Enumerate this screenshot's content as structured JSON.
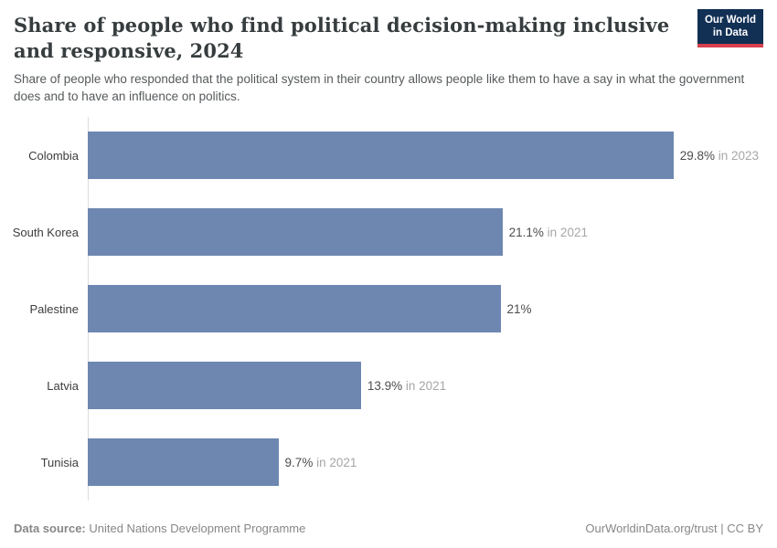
{
  "header": {
    "title": "Share of people who find political decision-making inclusive and responsive, 2024",
    "subtitle": "Share of people who responded that the political system in their country allows people like them to have a say in what the government does and to have an influence on politics.",
    "logo": {
      "line1": "Our World",
      "line2": "in Data"
    }
  },
  "chart_data": {
    "type": "bar",
    "orientation": "horizontal",
    "title": "Share of people who find political decision-making inclusive and responsive, 2024",
    "categories": [
      "Colombia",
      "South Korea",
      "Palestine",
      "Latvia",
      "Tunisia"
    ],
    "values": [
      29.8,
      21.1,
      21,
      13.9,
      9.7
    ],
    "value_labels": [
      "29.8%",
      "21.1%",
      "21%",
      "13.9%",
      "9.7%"
    ],
    "year_labels": [
      "in 2023",
      "in 2021",
      "",
      "in 2021",
      "in 2021"
    ],
    "unit": "%",
    "xlim": [
      0,
      30
    ],
    "grid": false,
    "legend": "none",
    "bar_color": "#6e87b1",
    "axis_color": "#dcdcdc"
  },
  "footer": {
    "datasource_label": "Data source:",
    "datasource_value": " United Nations Development Programme",
    "attribution": "OurWorldinData.org/trust | CC BY"
  },
  "colors": {
    "bar": "#6e87b1",
    "logo_background": "#122f54",
    "logo_stripe": "#d7414e",
    "title_text": "#373d3f",
    "muted_text": "#a6a6a6",
    "footer_text": "#878787"
  }
}
